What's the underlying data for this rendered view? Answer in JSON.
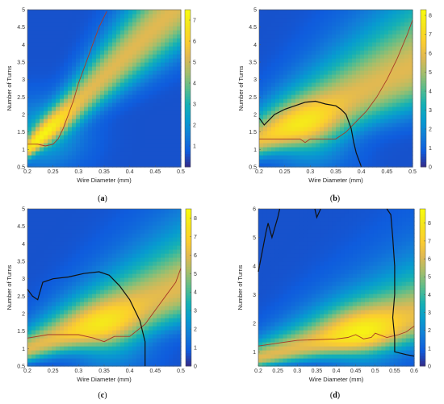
{
  "chart_data": [
    {
      "type": "heatmap",
      "panel": "a",
      "caption": "(a)",
      "xlabel": "Wire Diameter (mm)",
      "ylabel": "Number of Turns",
      "xlim": [
        0.2,
        0.5
      ],
      "ylim": [
        0.5,
        5
      ],
      "xticks": [
        "0.2",
        "0.25",
        "0.3",
        "0.35",
        "0.4",
        "0.45",
        "0.5"
      ],
      "yticks": [
        "0.5",
        "1",
        "1.5",
        "2",
        "2.5",
        "3",
        "3.5",
        "4",
        "4.5",
        "5"
      ],
      "colorbar": {
        "min": 0,
        "max": 7.5,
        "ticks": [
          "1",
          "2",
          "3",
          "4",
          "5",
          "6",
          "7"
        ],
        "tick_values": [
          1,
          2,
          3,
          4,
          5,
          6,
          7
        ]
      },
      "ridge": {
        "c0": 1.0,
        "slope": 14,
        "sigma": 0.28
      },
      "peak": {
        "x": 0.23,
        "y": 1.45,
        "value": 7.3
      },
      "boundary_line": {
        "color": "#a83a26",
        "points": [
          [
            0.2,
            1.15
          ],
          [
            0.22,
            1.15
          ],
          [
            0.235,
            1.1
          ],
          [
            0.25,
            1.15
          ],
          [
            0.26,
            1.3
          ],
          [
            0.27,
            1.6
          ],
          [
            0.28,
            2.0
          ],
          [
            0.29,
            2.4
          ],
          [
            0.3,
            2.9
          ],
          [
            0.31,
            3.3
          ],
          [
            0.32,
            3.7
          ],
          [
            0.33,
            4.1
          ],
          [
            0.34,
            4.5
          ],
          [
            0.355,
            4.95
          ]
        ]
      },
      "constraint_line": null
    },
    {
      "type": "heatmap",
      "panel": "b",
      "caption": "(b)",
      "xlabel": "Wire Diameter (mm)",
      "ylabel": "Number of Turns",
      "xlim": [
        0.2,
        0.5
      ],
      "ylim": [
        0.5,
        5
      ],
      "xticks": [
        "0.2",
        "0.25",
        "0.3",
        "0.35",
        "0.4",
        "0.45",
        "0.5"
      ],
      "yticks": [
        "0.5",
        "1",
        "1.5",
        "2",
        "2.5",
        "3",
        "3.5",
        "4",
        "4.5",
        "5"
      ],
      "colorbar": {
        "min": 0,
        "max": 8.3,
        "ticks": [
          "0",
          "1",
          "2",
          "3",
          "4",
          "5",
          "6",
          "7",
          "8"
        ],
        "tick_values": [
          0,
          1,
          2,
          3,
          4,
          5,
          6,
          7,
          8
        ]
      },
      "ridge": {
        "c0": 1.3,
        "slope": 7,
        "sigma": 0.45
      },
      "peak": {
        "x": 0.3,
        "y": 1.4,
        "value": 8.2
      },
      "boundary_line": {
        "color": "#a83a26",
        "points": [
          [
            0.2,
            1.3
          ],
          [
            0.28,
            1.3
          ],
          [
            0.29,
            1.2
          ],
          [
            0.3,
            1.3
          ],
          [
            0.35,
            1.3
          ],
          [
            0.37,
            1.5
          ],
          [
            0.39,
            1.8
          ],
          [
            0.41,
            2.1
          ],
          [
            0.43,
            2.5
          ],
          [
            0.45,
            3.0
          ],
          [
            0.47,
            3.6
          ],
          [
            0.49,
            4.3
          ],
          [
            0.5,
            4.7
          ]
        ]
      },
      "constraint_line": {
        "color": "#111111",
        "points": [
          [
            0.2,
            1.9
          ],
          [
            0.21,
            1.7
          ],
          [
            0.23,
            2.0
          ],
          [
            0.25,
            2.15
          ],
          [
            0.27,
            2.25
          ],
          [
            0.29,
            2.35
          ],
          [
            0.31,
            2.38
          ],
          [
            0.33,
            2.3
          ],
          [
            0.35,
            2.25
          ],
          [
            0.36,
            2.15
          ],
          [
            0.37,
            2.0
          ],
          [
            0.38,
            1.6
          ],
          [
            0.385,
            1.2
          ],
          [
            0.39,
            0.9
          ],
          [
            0.4,
            0.5
          ]
        ]
      }
    },
    {
      "type": "heatmap",
      "panel": "c",
      "caption": "(c)",
      "xlabel": "Wire Diameter (mm)",
      "ylabel": "Number of Turns",
      "xlim": [
        0.2,
        0.5
      ],
      "ylim": [
        0.5,
        5
      ],
      "xticks": [
        "0.2",
        "0.25",
        "0.3",
        "0.35",
        "0.4",
        "0.45",
        "0.5"
      ],
      "yticks": [
        "0.5",
        "1",
        "1.5",
        "2",
        "2.5",
        "3",
        "3.5",
        "4",
        "4.5",
        "5"
      ],
      "colorbar": {
        "min": 0,
        "max": 8.5,
        "ticks": [
          "0",
          "1",
          "2",
          "3",
          "4",
          "5",
          "6",
          "7",
          "8"
        ],
        "tick_values": [
          0,
          1,
          2,
          3,
          4,
          5,
          6,
          7,
          8
        ]
      },
      "ridge": {
        "c0": 1.0,
        "slope": 6,
        "sigma": 0.45
      },
      "peak": {
        "x": 0.36,
        "y": 1.35,
        "value": 8.4
      },
      "boundary_line": {
        "color": "#a83a26",
        "points": [
          [
            0.2,
            1.3
          ],
          [
            0.24,
            1.4
          ],
          [
            0.3,
            1.4
          ],
          [
            0.33,
            1.3
          ],
          [
            0.35,
            1.2
          ],
          [
            0.37,
            1.35
          ],
          [
            0.4,
            1.35
          ],
          [
            0.43,
            1.7
          ],
          [
            0.45,
            2.1
          ],
          [
            0.47,
            2.5
          ],
          [
            0.49,
            2.9
          ],
          [
            0.5,
            3.3
          ]
        ]
      },
      "constraint_line": {
        "color": "#111111",
        "points": [
          [
            0.2,
            2.7
          ],
          [
            0.21,
            2.5
          ],
          [
            0.22,
            2.4
          ],
          [
            0.23,
            2.9
          ],
          [
            0.25,
            3.0
          ],
          [
            0.28,
            3.05
          ],
          [
            0.31,
            3.15
          ],
          [
            0.34,
            3.2
          ],
          [
            0.36,
            3.1
          ],
          [
            0.38,
            2.8
          ],
          [
            0.4,
            2.4
          ],
          [
            0.42,
            1.8
          ],
          [
            0.43,
            1.2
          ],
          [
            0.43,
            0.5
          ]
        ]
      }
    },
    {
      "type": "heatmap",
      "panel": "d",
      "caption": "(d)",
      "xlabel": "Wire Diameter (mm)",
      "ylabel": "Number of Turns",
      "xlim": [
        0.2,
        0.6
      ],
      "ylim": [
        0.5,
        6
      ],
      "xticks": [
        "0.2",
        "0.25",
        "0.3",
        "0.35",
        "0.4",
        "0.45",
        "0.5",
        "0.55",
        "0.6"
      ],
      "yticks": [
        "1",
        "2",
        "3",
        "4",
        "5",
        "6"
      ],
      "colorbar": {
        "min": 0,
        "max": 8.8,
        "ticks": [
          "0",
          "1",
          "2",
          "3",
          "4",
          "5",
          "6",
          "7",
          "8"
        ],
        "tick_values": [
          0,
          1,
          2,
          3,
          4,
          5,
          6,
          7,
          8
        ]
      },
      "ridge": {
        "c0": 0.8,
        "slope": 3.8,
        "sigma": 0.55
      },
      "peak": {
        "x": 0.47,
        "y": 1.5,
        "value": 8.6
      },
      "boundary_line": {
        "color": "#a83a26",
        "points": [
          [
            0.2,
            1.2
          ],
          [
            0.25,
            1.3
          ],
          [
            0.3,
            1.4
          ],
          [
            0.4,
            1.45
          ],
          [
            0.43,
            1.5
          ],
          [
            0.45,
            1.6
          ],
          [
            0.47,
            1.45
          ],
          [
            0.49,
            1.5
          ],
          [
            0.5,
            1.65
          ],
          [
            0.53,
            1.5
          ],
          [
            0.56,
            1.6
          ],
          [
            0.58,
            1.7
          ],
          [
            0.6,
            1.9
          ]
        ]
      },
      "constraint_line": {
        "color": "#111111",
        "points": [
          [
            0.2,
            3.8
          ],
          [
            0.21,
            4.5
          ],
          [
            0.22,
            5.2
          ],
          [
            0.225,
            5.5
          ],
          [
            0.235,
            5.0
          ],
          [
            0.25,
            5.7
          ],
          [
            0.255,
            6.0
          ]
        ]
      },
      "constraint_line_2": {
        "color": "#111111",
        "points": [
          [
            0.345,
            6.0
          ],
          [
            0.35,
            5.7
          ],
          [
            0.36,
            6.0
          ]
        ]
      },
      "constraint_line_3": {
        "color": "#111111",
        "points": [
          [
            0.53,
            6.0
          ],
          [
            0.54,
            5.8
          ],
          [
            0.545,
            5.0
          ],
          [
            0.55,
            4.0
          ],
          [
            0.55,
            3.0
          ],
          [
            0.545,
            2.2
          ],
          [
            0.55,
            1.5
          ],
          [
            0.55,
            1.0
          ],
          [
            0.58,
            0.9
          ],
          [
            0.6,
            0.85
          ]
        ]
      }
    }
  ]
}
